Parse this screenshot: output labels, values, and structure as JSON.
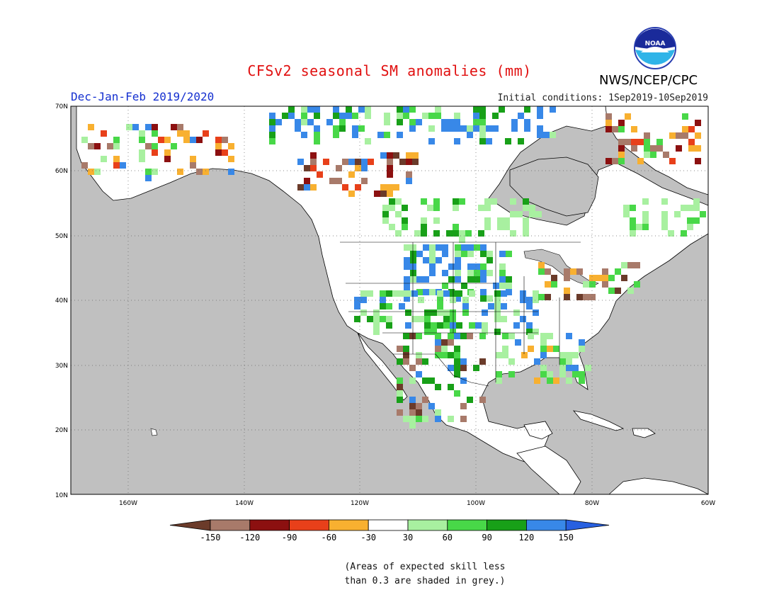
{
  "title": "CFSv2 seasonal SM anomalies (mm)",
  "agency": "NWS/NCEP/CPC",
  "logo_text": "NOAA",
  "period": "Dec-Jan-Feb 2019/2020",
  "initial_conditions": "Initial conditions: 1Sep2019-10Sep2019",
  "lat_labels": [
    "70N",
    "60N",
    "50N",
    "40N",
    "30N",
    "20N",
    "10N"
  ],
  "lon_labels": [
    "160W",
    "140W",
    "120W",
    "100W",
    "80W",
    "60W"
  ],
  "colorbar": {
    "labels": [
      "-150",
      "-120",
      "-90",
      "-60",
      "-30",
      "30",
      "60",
      "90",
      "120",
      "150"
    ],
    "colors": [
      "#6b3b2a",
      "#a87a6a",
      "#8c1010",
      "#e8401a",
      "#f8b030",
      "#ffffff",
      "#a8f0a0",
      "#48d848",
      "#18a018",
      "#3888e8",
      "#2860e0"
    ]
  },
  "note_line1": "(Areas of expected skill less",
  "note_line2": "than 0.3 are shaded in grey.)",
  "colors": {
    "ocean": "#c0c0c0",
    "land": "#ffffff",
    "title": "#e11010",
    "period": "#1530d0"
  }
}
